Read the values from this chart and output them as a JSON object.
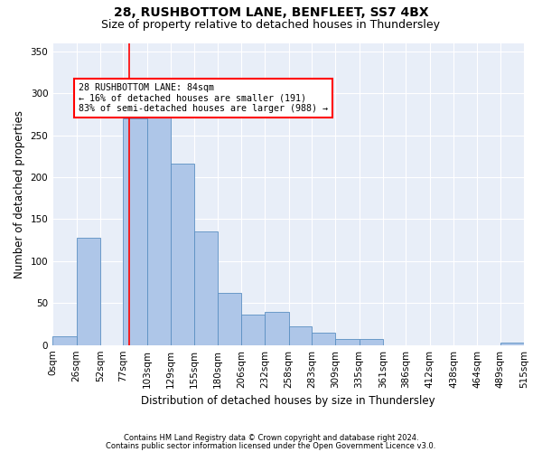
{
  "title1": "28, RUSHBOTTOM LANE, BENFLEET, SS7 4BX",
  "title2": "Size of property relative to detached houses in Thundersley",
  "xlabel": "Distribution of detached houses by size in Thundersley",
  "ylabel": "Number of detached properties",
  "footnote1": "Contains HM Land Registry data © Crown copyright and database right 2024.",
  "footnote2": "Contains public sector information licensed under the Open Government Licence v3.0.",
  "bin_labels": [
    "0sqm",
    "26sqm",
    "52sqm",
    "77sqm",
    "103sqm",
    "129sqm",
    "155sqm",
    "180sqm",
    "206sqm",
    "232sqm",
    "258sqm",
    "283sqm",
    "309sqm",
    "335sqm",
    "361sqm",
    "386sqm",
    "412sqm",
    "438sqm",
    "464sqm",
    "489sqm",
    "515sqm"
  ],
  "bin_edges": [
    0,
    26,
    52,
    77,
    103,
    129,
    155,
    180,
    206,
    232,
    258,
    283,
    309,
    335,
    361,
    386,
    412,
    438,
    464,
    489,
    515
  ],
  "bar_heights": [
    10,
    128,
    0,
    270,
    288,
    216,
    135,
    62,
    36,
    40,
    22,
    15,
    7,
    7,
    0,
    0,
    0,
    0,
    0,
    3
  ],
  "bar_color": "#aec6e8",
  "bar_edge_color": "#5a8fc2",
  "red_line_x": 84,
  "annotation_text": "28 RUSHBOTTOM LANE: 84sqm\n← 16% of detached houses are smaller (191)\n83% of semi-detached houses are larger (988) →",
  "annotation_box_color": "white",
  "annotation_box_edge": "red",
  "ylim": [
    0,
    360
  ],
  "yticks": [
    0,
    50,
    100,
    150,
    200,
    250,
    300,
    350
  ],
  "background_color": "#e8eef8",
  "grid_color": "white",
  "title1_fontsize": 10,
  "title2_fontsize": 9,
  "xlabel_fontsize": 8.5,
  "ylabel_fontsize": 8.5,
  "tick_fontsize": 7.5,
  "footnote_fontsize": 6.0
}
